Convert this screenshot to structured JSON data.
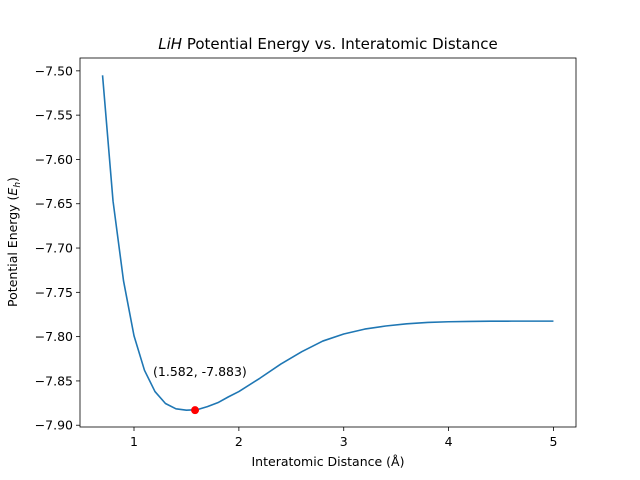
{
  "chart_data": {
    "type": "line",
    "title_italic": "LiH",
    "title_rest": " Potential Energy vs. Interatomic Distance",
    "xlabel": "Interatomic Distance (Å)",
    "ylabel_main": "Potential Energy (",
    "ylabel_sym": "E",
    "ylabel_sub": "h",
    "ylabel_end": ")",
    "xlim": [
      0.485,
      5.215
    ],
    "ylim": [
      -7.902,
      -7.4855
    ],
    "x_ticks": [
      1,
      2,
      3,
      4,
      5
    ],
    "x_tick_labels": [
      "1",
      "2",
      "3",
      "4",
      "5"
    ],
    "y_ticks": [
      -7.5,
      -7.55,
      -7.6,
      -7.65,
      -7.7,
      -7.75,
      -7.8,
      -7.85,
      -7.9
    ],
    "y_tick_labels": [
      "−7.50",
      "−7.55",
      "−7.60",
      "−7.65",
      "−7.70",
      "−7.75",
      "−7.80",
      "−7.85",
      "−7.90"
    ],
    "grid": false,
    "series": [
      {
        "color": "#1f77b4",
        "x": [
          0.7,
          0.8,
          0.9,
          1.0,
          1.1,
          1.2,
          1.3,
          1.4,
          1.5,
          1.6,
          1.7,
          1.8,
          1.9,
          2.0,
          2.2,
          2.4,
          2.6,
          2.8,
          3.0,
          3.2,
          3.4,
          3.6,
          3.8,
          4.0,
          4.2,
          4.4,
          4.6,
          4.8,
          5.0
        ],
        "y": [
          -7.505,
          -7.647,
          -7.737,
          -7.799,
          -7.838,
          -7.862,
          -7.8755,
          -7.8815,
          -7.883,
          -7.8825,
          -7.879,
          -7.8745,
          -7.868,
          -7.862,
          -7.847,
          -7.831,
          -7.817,
          -7.805,
          -7.797,
          -7.7915,
          -7.788,
          -7.7855,
          -7.784,
          -7.7832,
          -7.7828,
          -7.7826,
          -7.7825,
          -7.7825,
          -7.7825
        ]
      }
    ],
    "marker": {
      "x": 1.582,
      "y": -7.883,
      "color": "#ff0000"
    },
    "annotation": {
      "text": "(1.582, -7.883)",
      "x": 1.582,
      "y": -7.883
    }
  }
}
